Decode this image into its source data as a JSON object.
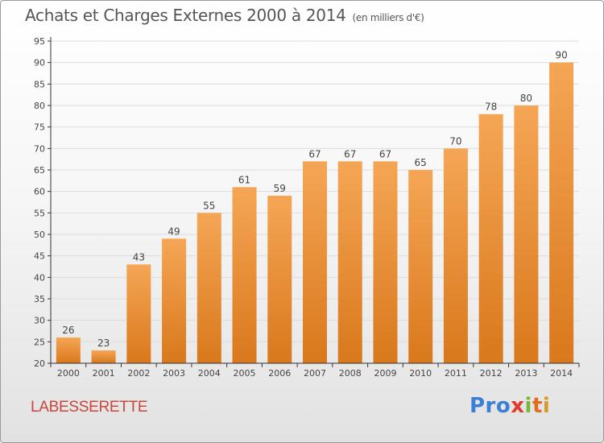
{
  "title": "Achats et Charges Externes 2000 à 2014",
  "unit_note": "(en milliers d'€)",
  "commune": "LABESSERETTE",
  "logo": {
    "p1": "Pro",
    "p2": "x",
    "p3": "i",
    "p4": "t",
    "p5": "i"
  },
  "colors": {
    "bar_light": "#f5a655",
    "bar_dark": "#d9781c",
    "grid": "#dcdcdc",
    "axis": "#333333"
  },
  "chart_data": {
    "type": "bar",
    "categories": [
      "2000",
      "2001",
      "2002",
      "2003",
      "2004",
      "2005",
      "2006",
      "2007",
      "2008",
      "2009",
      "2010",
      "2011",
      "2012",
      "2013",
      "2014"
    ],
    "values": [
      26,
      23,
      43,
      49,
      55,
      61,
      59,
      67,
      67,
      67,
      65,
      70,
      78,
      80,
      90
    ],
    "title": "Achats et Charges Externes 2000 à 2014",
    "ylim": [
      20,
      95
    ],
    "yticks": [
      20,
      25,
      30,
      35,
      40,
      45,
      50,
      55,
      60,
      65,
      70,
      75,
      80,
      85,
      90,
      95
    ],
    "grid": true,
    "data_labels": true
  }
}
